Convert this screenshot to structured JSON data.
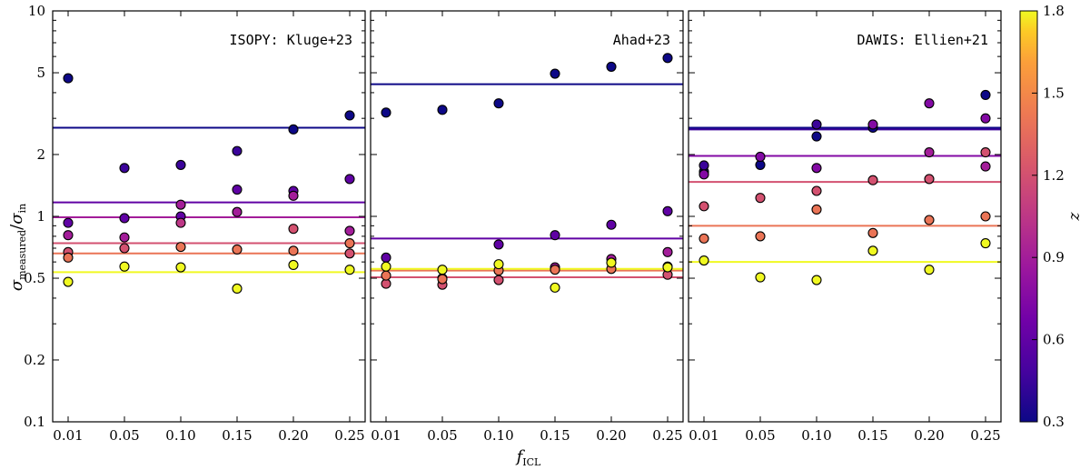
{
  "chart_data": {
    "type": "scatter",
    "shared_ylabel": {
      "base": "σ",
      "num_sub": "measured",
      "den_sub": "in"
    },
    "shared_xlabel": {
      "base": "f",
      "sub": "ICL"
    },
    "x_tick_labels": [
      "0.01",
      "0.05",
      "0.10",
      "0.15",
      "0.20",
      "0.25"
    ],
    "y_scale": "log",
    "ylim": [
      0.1,
      10
    ],
    "y_ticks": [
      0.1,
      0.2,
      0.5,
      1,
      2,
      5,
      10
    ],
    "y_tick_labels": [
      "0.1",
      "0.2",
      "0.5",
      "1",
      "2",
      "5",
      "10"
    ],
    "colorbar": {
      "label": "z",
      "range": [
        0.3,
        1.8
      ],
      "ticks": [
        0.3,
        0.6,
        0.9,
        1.2,
        1.5,
        1.8
      ],
      "tick_labels": [
        "0.3",
        "0.6",
        "0.9",
        "1.2",
        "1.5",
        "1.8"
      ],
      "colormap": "plasma"
    },
    "panels": [
      {
        "title": "ISOPY: Kluge+23",
        "series": [
          {
            "z": 0.3,
            "values": [
              4.7,
              null,
              null,
              null,
              2.65,
              3.1
            ],
            "median": 2.7
          },
          {
            "z": 0.45,
            "values": [
              null,
              1.72,
              1.78,
              2.08,
              null,
              null
            ],
            "median": null
          },
          {
            "z": 0.6,
            "values": [
              0.93,
              0.98,
              1.0,
              1.35,
              1.33,
              1.52
            ],
            "median": 1.17
          },
          {
            "z": 0.9,
            "values": [
              0.81,
              0.79,
              1.14,
              1.05,
              1.26,
              0.85
            ],
            "median": 0.99
          },
          {
            "z": 1.05,
            "values": [
              null,
              null,
              0.93,
              null,
              null,
              null
            ],
            "median": null
          },
          {
            "z": 1.2,
            "values": [
              0.67,
              0.7,
              null,
              null,
              0.87,
              0.66
            ],
            "median": 0.74
          },
          {
            "z": 1.4,
            "values": [
              0.63,
              null,
              0.71,
              0.69,
              0.68,
              0.74
            ],
            "median": 0.66
          },
          {
            "z": 1.8,
            "values": [
              0.48,
              0.57,
              0.565,
              0.445,
              0.58,
              0.55
            ],
            "median": 0.535
          }
        ]
      },
      {
        "title": "Ahad+23",
        "series": [
          {
            "z": 0.3,
            "values": [
              3.2,
              3.3,
              3.55,
              4.95,
              5.35,
              5.9
            ],
            "median": 4.4
          },
          {
            "z": 0.6,
            "values": [
              0.63,
              null,
              0.73,
              0.81,
              0.91,
              1.06
            ],
            "median": 0.78
          },
          {
            "z": 0.9,
            "values": [
              null,
              0.5,
              null,
              0.565,
              0.62,
              0.67
            ],
            "median": null
          },
          {
            "z": 1.2,
            "values": [
              0.47,
              0.465,
              0.49,
              null,
              null,
              0.52
            ],
            "median": 0.505
          },
          {
            "z": 1.4,
            "values": [
              0.515,
              0.495,
              0.545,
              0.55,
              0.555,
              0.57
            ],
            "median": 0.545
          },
          {
            "z": 1.8,
            "values": [
              0.57,
              0.55,
              0.585,
              0.45,
              0.595,
              0.565
            ],
            "median": 0.555
          }
        ]
      },
      {
        "title": "DAWIS: Ellien+21",
        "series": [
          {
            "z": 0.3,
            "values": [
              1.65,
              1.78,
              2.45,
              2.7,
              null,
              3.9
            ],
            "median": 2.7
          },
          {
            "z": 0.45,
            "values": [
              1.77,
              null,
              2.8,
              null,
              null,
              null
            ],
            "median": 2.65
          },
          {
            "z": 0.75,
            "values": [
              1.6,
              1.95,
              1.72,
              2.8,
              3.55,
              3.0
            ],
            "median": 1.97
          },
          {
            "z": 0.9,
            "values": [
              null,
              null,
              null,
              null,
              2.05,
              1.75
            ],
            "median": null
          },
          {
            "z": 1.2,
            "values": [
              1.12,
              1.23,
              1.33,
              1.5,
              1.52,
              2.05
            ],
            "median": 1.47
          },
          {
            "z": 1.4,
            "values": [
              0.78,
              0.8,
              1.08,
              0.83,
              0.96,
              1.0
            ],
            "median": 0.9
          },
          {
            "z": 1.8,
            "values": [
              0.61,
              0.505,
              0.49,
              0.68,
              0.55,
              0.74
            ],
            "median": 0.6
          }
        ]
      }
    ]
  }
}
